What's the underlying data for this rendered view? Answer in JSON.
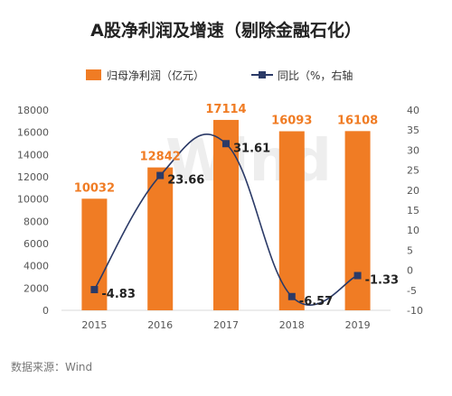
{
  "chart_data": {
    "type": "bar",
    "title": "A股净利润及增速（剔除金融石化）",
    "categories": [
      "2015",
      "2016",
      "2017",
      "2018",
      "2019"
    ],
    "series": [
      {
        "name": "归母净利润（亿元）",
        "type": "bar",
        "axis": "left",
        "values": [
          10032,
          12842,
          17114,
          16093,
          16108
        ]
      },
      {
        "name": "同比（%，右轴",
        "type": "line",
        "axis": "right",
        "values": [
          -4.83,
          23.66,
          31.61,
          -6.57,
          -1.33
        ]
      }
    ],
    "bar_labels": [
      "10032",
      "12842",
      "17114",
      "16093",
      "16108"
    ],
    "line_labels": [
      "-4.83",
      "23.66",
      "31.61",
      "-6.57",
      "-1.33"
    ],
    "y_left": {
      "min": 0,
      "max": 18000,
      "ticks": [
        "0",
        "2000",
        "4000",
        "6000",
        "8000",
        "10000",
        "12000",
        "14000",
        "16000",
        "18000"
      ]
    },
    "y_right": {
      "min": -10,
      "max": 40,
      "ticks": [
        "-10",
        "-5",
        "0",
        "5",
        "10",
        "15",
        "20",
        "25",
        "30",
        "35",
        "40"
      ]
    },
    "grid": false,
    "legend_position": "top",
    "colors": {
      "bar": "#f07c24",
      "line": "#2b3a67",
      "line_marker": "#2b3a67"
    }
  },
  "source": "数据来源：Wind",
  "watermark": "Wind"
}
